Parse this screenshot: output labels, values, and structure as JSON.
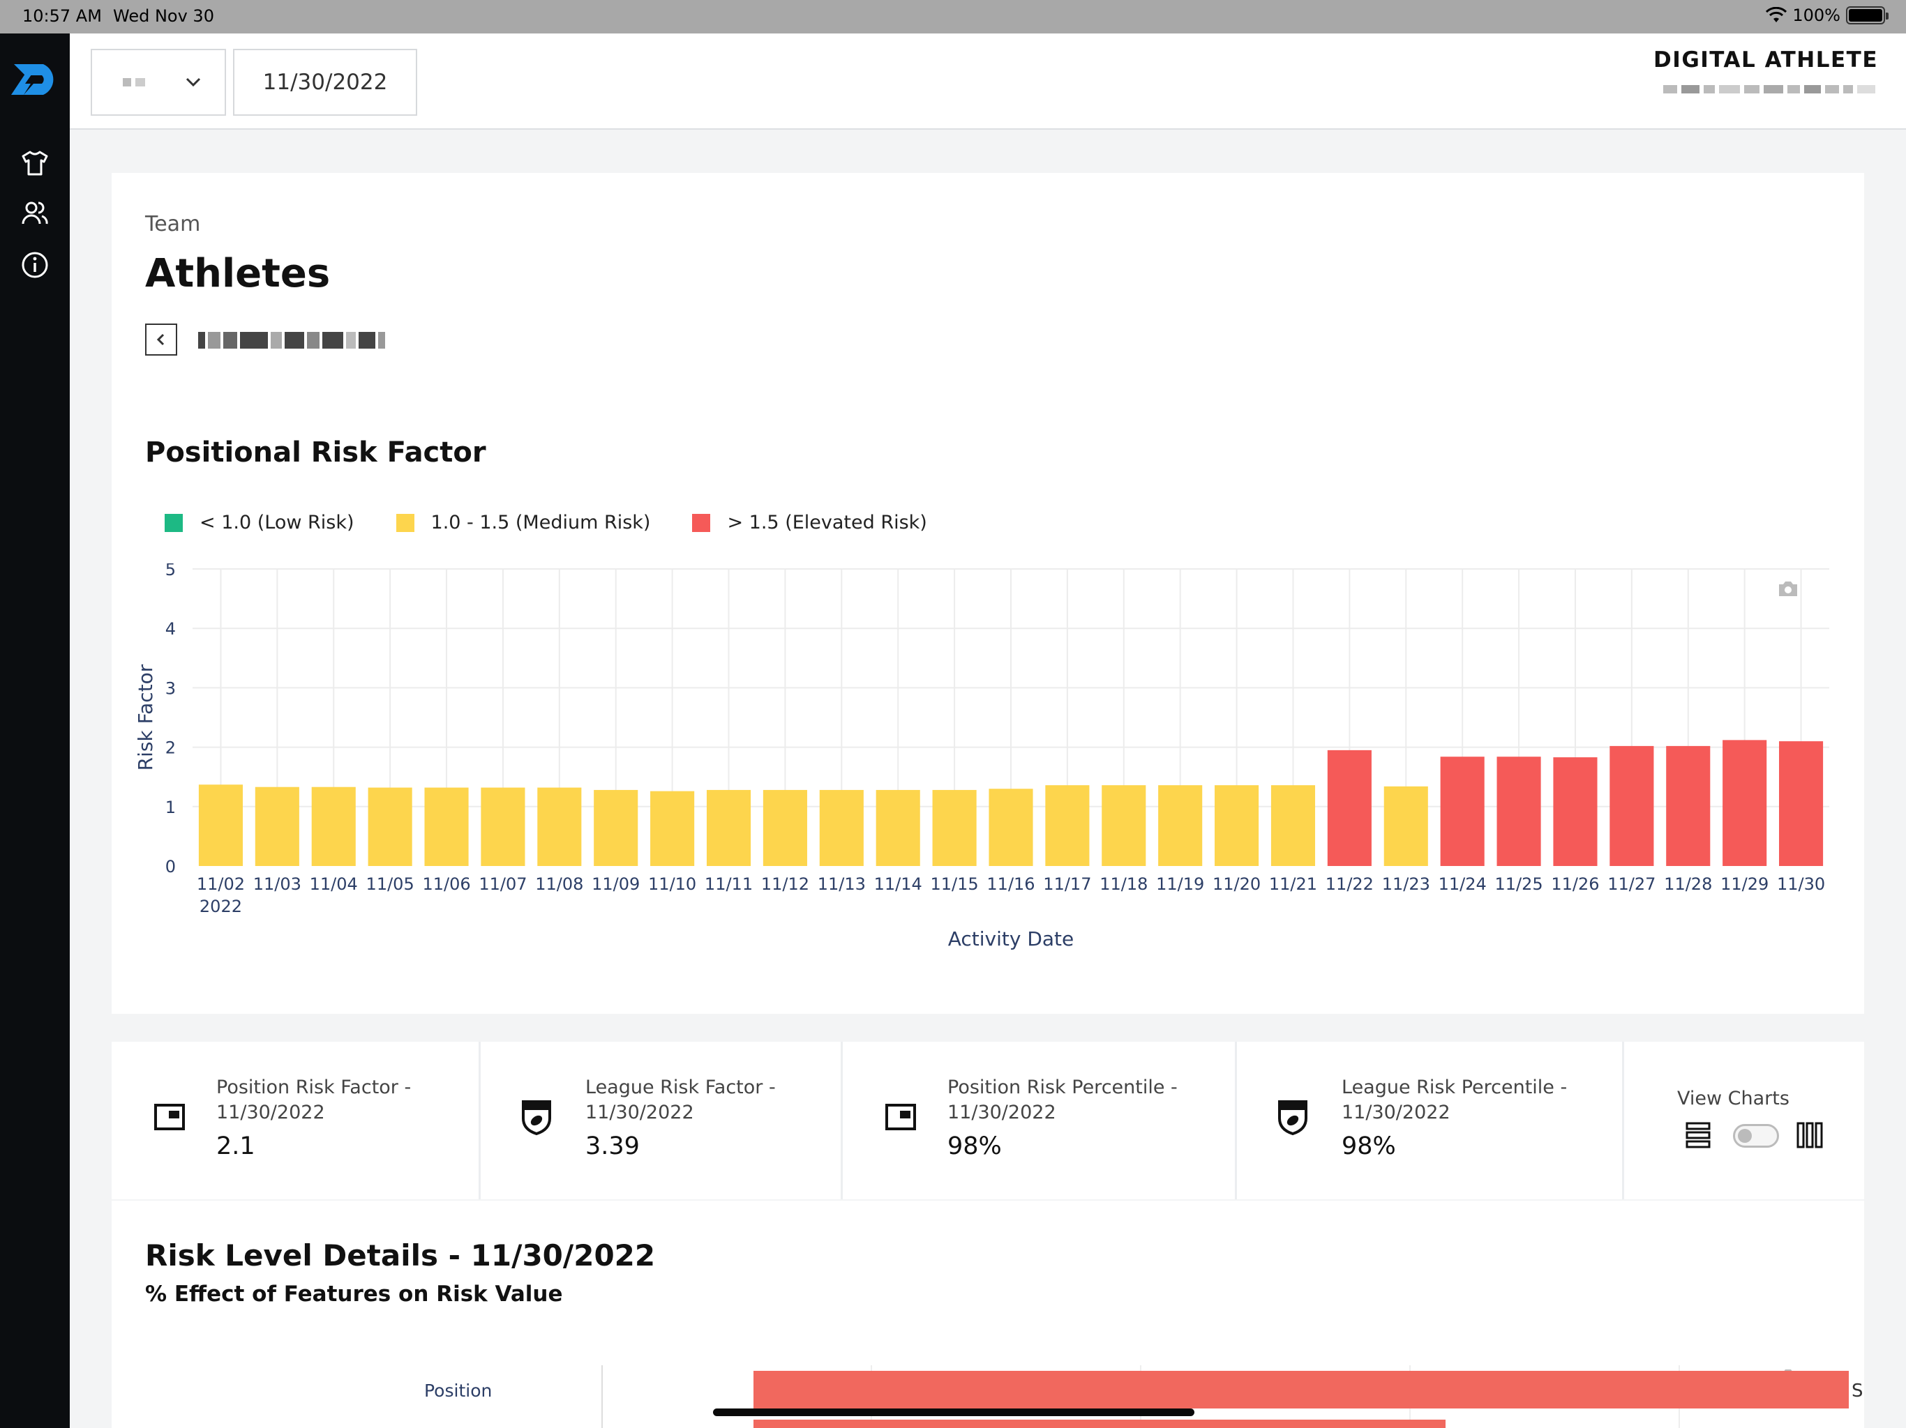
{
  "status_bar": {
    "time": "10:57 AM",
    "date": "Wed Nov 30",
    "battery": "100%"
  },
  "header": {
    "date_value": "11/30/2022",
    "brand": "DIGITAL ATHLETE"
  },
  "page": {
    "breadcrumb": "Team",
    "title": "Athletes"
  },
  "chart_section": {
    "title": "Positional Risk Factor",
    "legend": [
      {
        "label": "< 1.0 (Low Risk)",
        "color": "#1db984"
      },
      {
        "label": "1.0 - 1.5 (Medium Risk)",
        "color": "#fdd54d"
      },
      {
        "label": "> 1.5 (Elevated Risk)",
        "color": "#f55a58"
      }
    ]
  },
  "chart_data": {
    "type": "bar",
    "xlabel": "Activity Date",
    "ylabel": "Risk Factor",
    "ylim": [
      0,
      5
    ],
    "yticks": [
      0,
      1,
      2,
      3,
      4,
      5
    ],
    "year_label": "2022",
    "grid": true,
    "categories": [
      "11/02",
      "11/03",
      "11/04",
      "11/05",
      "11/06",
      "11/07",
      "11/08",
      "11/09",
      "11/10",
      "11/11",
      "11/12",
      "11/13",
      "11/14",
      "11/15",
      "11/16",
      "11/17",
      "11/18",
      "11/19",
      "11/20",
      "11/21",
      "11/22",
      "11/23",
      "11/24",
      "11/25",
      "11/26",
      "11/27",
      "11/28",
      "11/29",
      "11/30"
    ],
    "values": [
      1.37,
      1.33,
      1.33,
      1.32,
      1.32,
      1.32,
      1.32,
      1.28,
      1.26,
      1.28,
      1.28,
      1.28,
      1.28,
      1.28,
      1.3,
      1.36,
      1.36,
      1.36,
      1.36,
      1.36,
      1.95,
      1.34,
      1.84,
      1.84,
      1.83,
      2.02,
      2.02,
      2.12,
      2.1
    ],
    "colors": {
      "low": "#1db984",
      "medium": "#fdd54d",
      "elevated": "#f55a58"
    }
  },
  "stats": [
    {
      "label": "Position Risk Factor -",
      "date": "11/30/2022",
      "value": "2.1",
      "icon": "position-icon"
    },
    {
      "label": "League Risk Factor -",
      "date": "11/30/2022",
      "value": "3.39",
      "icon": "league-shield-icon"
    },
    {
      "label": "Position Risk Percentile -",
      "date": "11/30/2022",
      "value": "98%",
      "icon": "position-icon"
    },
    {
      "label": "League Risk Percentile -",
      "date": "11/30/2022",
      "value": "98%",
      "icon": "league-shield-icon"
    }
  ],
  "view_charts": {
    "label": "View Charts"
  },
  "risk_details": {
    "title": "Risk Level Details - 11/30/2022",
    "subtitle": "% Effect of Features on Risk Value",
    "row_label": "Position",
    "bar_suffix": "S"
  }
}
